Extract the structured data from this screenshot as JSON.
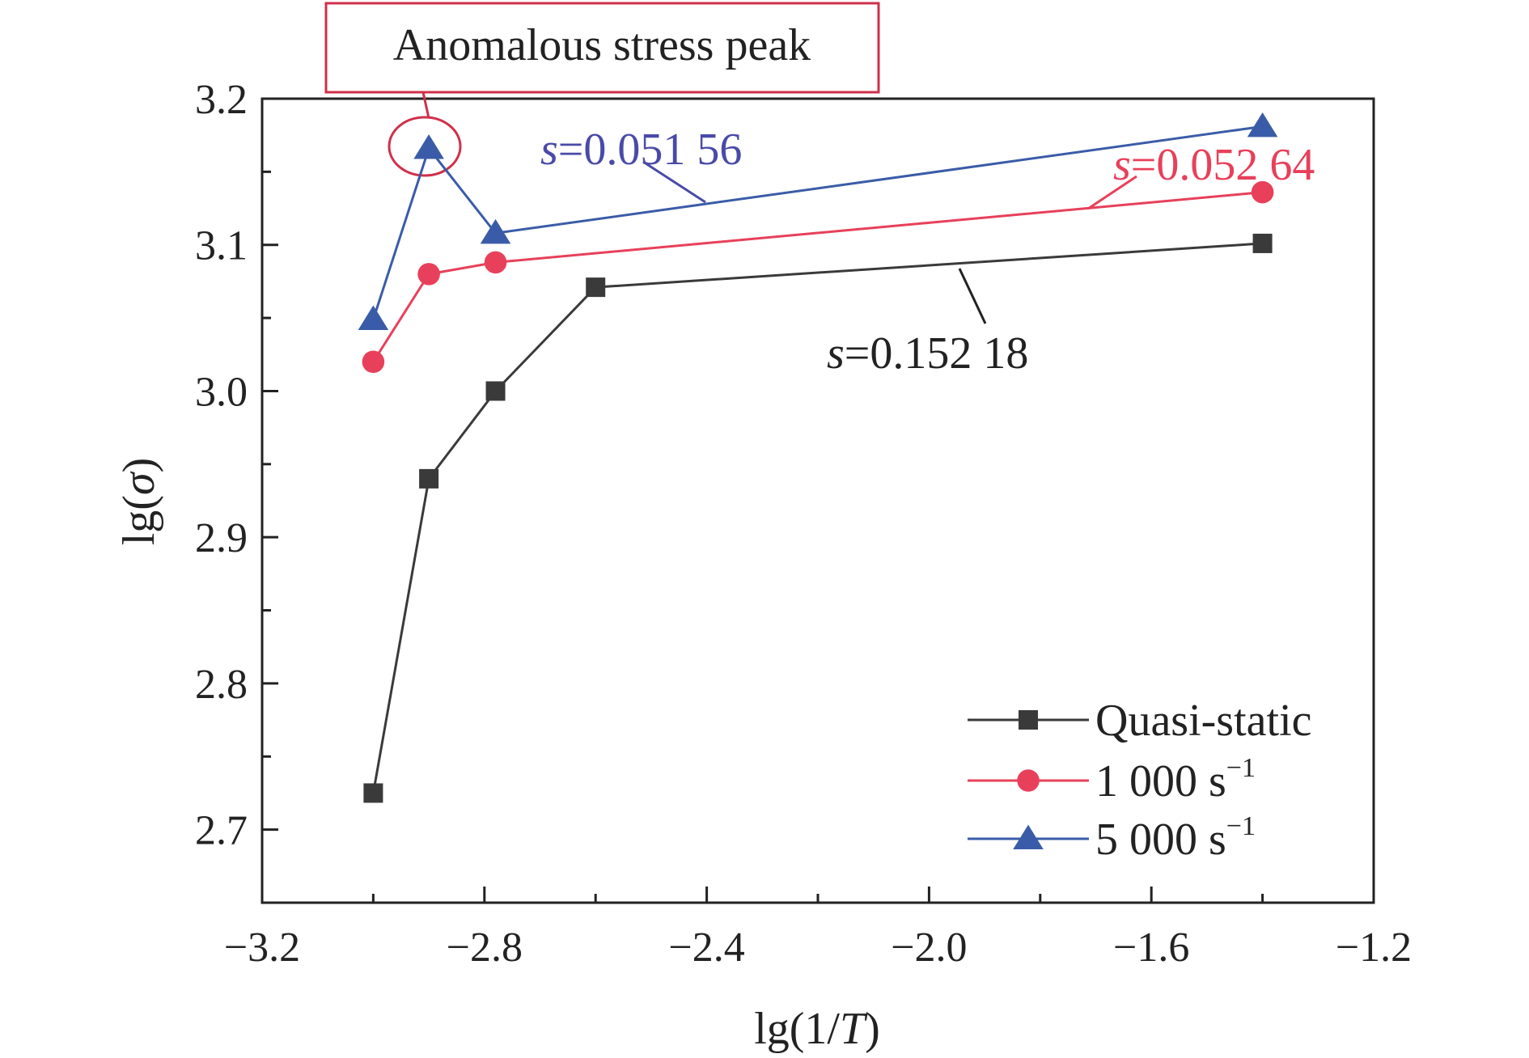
{
  "chart_data": {
    "type": "line",
    "xlabel": {
      "prefix": "lg(1/",
      "var": "T",
      "suffix": ")"
    },
    "ylabel": {
      "prefix": "lg(",
      "var": "σ",
      "suffix": ")"
    },
    "xlim": [
      -3.2,
      -1.2
    ],
    "ylim": [
      2.65,
      3.2
    ],
    "xticks": [
      -3.2,
      -2.8,
      -2.4,
      -2.0,
      -1.6,
      -1.2
    ],
    "xtick_labels": [
      "−3.2",
      "−2.8",
      "−2.4",
      "−2.0",
      "−1.6",
      "−1.2"
    ],
    "yticks": [
      2.7,
      2.8,
      2.9,
      3.0,
      3.1,
      3.2
    ],
    "ytick_labels": [
      "2.7",
      "2.8",
      "2.9",
      "3.0",
      "3.1",
      "3.2"
    ],
    "grid": false,
    "legend_position": "bottom-right",
    "series": [
      {
        "name": "Quasi-static",
        "legend_base": "Quasi-static",
        "legend_sup": "",
        "color": "#3a3a3a",
        "marker": "square",
        "x": [
          -3.0,
          -2.9,
          -2.78,
          -2.6,
          -1.4
        ],
        "y": [
          2.725,
          2.94,
          3.0,
          3.071,
          3.101
        ]
      },
      {
        "name": "1 000 s−1",
        "legend_base": "1 000 s",
        "legend_sup": "−1",
        "color": "#e8405a",
        "marker": "circle",
        "x": [
          -3.0,
          -2.9,
          -2.78,
          -1.4
        ],
        "y": [
          3.02,
          3.08,
          3.088,
          3.136
        ]
      },
      {
        "name": "5 000 s−1",
        "legend_base": "5 000 s",
        "legend_sup": "−1",
        "color": "#3a5ca8",
        "marker": "triangle",
        "x": [
          -3.0,
          -2.9,
          -2.78,
          -1.4
        ],
        "y": [
          3.049,
          3.166,
          3.108,
          3.181
        ]
      }
    ],
    "annotations": {
      "callout": "Anomalous stress peak",
      "callout_color": "#d0304a",
      "slope_quasi": {
        "var": "s",
        "value": "=0.152 18",
        "color": "#222222"
      },
      "slope_1000": {
        "var": "s",
        "value": "=0.052 64",
        "color": "#e8405a"
      },
      "slope_5000": {
        "var": "s",
        "value": "=0.051 56",
        "color": "#4a4aa8"
      }
    }
  }
}
